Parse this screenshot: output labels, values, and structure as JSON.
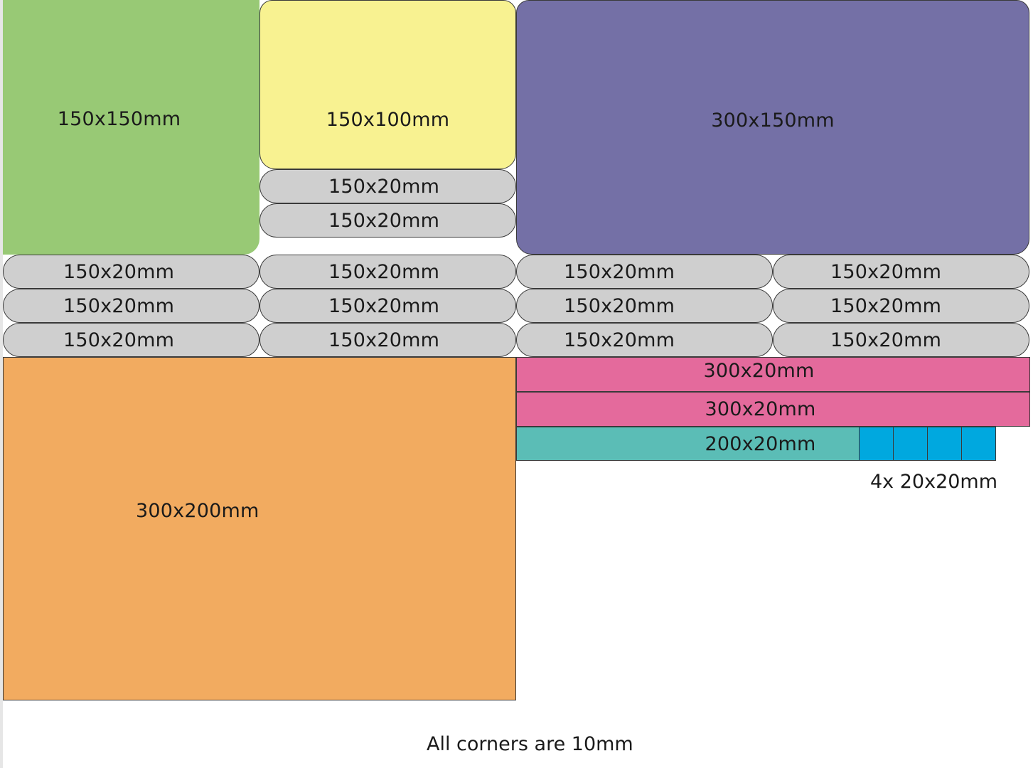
{
  "colors": {
    "green": "#98c975",
    "yellow": "#f8f291",
    "purple": "#7470a6",
    "grey": "#cfcfcf",
    "orange": "#f2ab60",
    "pink": "#e46a9c",
    "teal": "#5bbdb6",
    "blue": "#00a8df"
  },
  "pieces": {
    "green_150x150": "150x150mm",
    "yellow_150x100": "150x100mm",
    "purple_300x150": "300x150mm",
    "orange_300x200": "300x200mm",
    "pink_1": "300x20mm",
    "pink_2": "300x20mm",
    "teal_200x20": "200x20mm"
  },
  "strips_under_yellow": [
    "150x20mm",
    "150x20mm"
  ],
  "strip_grid": [
    [
      "150x20mm",
      "150x20mm",
      "150x20mm",
      "150x20mm"
    ],
    [
      "150x20mm",
      "150x20mm",
      "150x20mm",
      "150x20mm"
    ],
    [
      "150x20mm",
      "150x20mm",
      "150x20mm",
      "150x20mm"
    ]
  ],
  "small_squares_count": 4,
  "small_squares_label": "4x 20x20mm",
  "footer_note": "All corners are 10mm"
}
